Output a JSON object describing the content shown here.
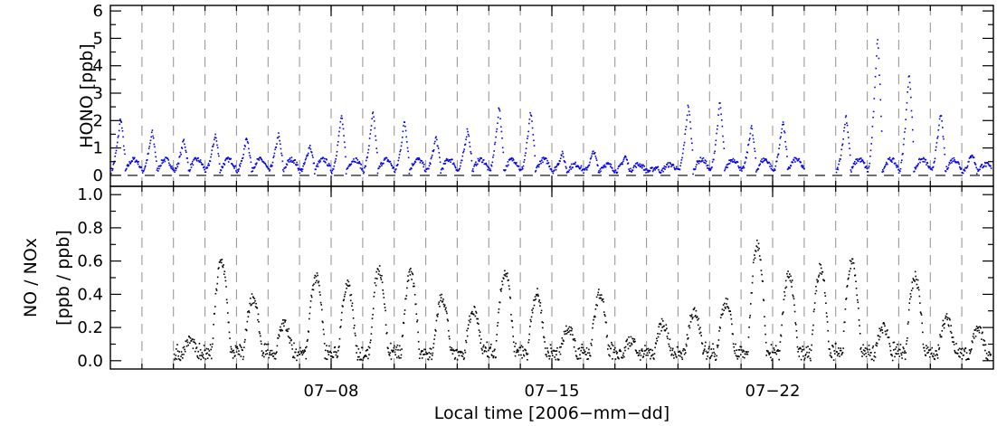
{
  "chart_data": [
    {
      "type": "scatter",
      "title": "",
      "ylabel": "HONO [ppb]",
      "ylim": [
        -0.4,
        6.2
      ],
      "yticks": [
        0,
        1,
        2,
        3,
        4,
        5,
        6
      ],
      "ytick_labels": [
        "0",
        "1",
        "2",
        "3",
        "4",
        "5",
        "6"
      ],
      "xlim": [
        "2006-07-01T00:00",
        "2006-07-29T00:00"
      ],
      "xtick_labels": [
        "",
        "",
        ""
      ],
      "grid": "vertical dashed lines at local midnight",
      "zero_line": true,
      "colors": {
        "points": "#0000ee",
        "zero_line": "#000000"
      },
      "series": [
        {
          "segments": [
            {
              "x_start": "2006-07-01T00:00",
              "days": 8,
              "peaks": [
                2.1,
                1.6,
                1.3,
                1.5,
                1.4,
                1.5,
                1.1,
                2.2
              ]
            },
            {
              "x_start": "2006-07-09T00:00",
              "days": 10,
              "peaks": [
                2.3,
                2.0,
                1.4,
                1.7,
                2.5,
                2.3,
                0.8,
                0.9,
                0.7,
                0.3
              ]
            },
            {
              "x_start": "2006-07-19T00:00",
              "days": 4,
              "peaks": [
                2.6,
                2.7,
                1.8,
                2.0
              ]
            },
            {
              "x_start": "2006-07-24T00:00",
              "days": 5,
              "peaks": [
                2.2,
                5.1,
                3.8,
                2.3,
                0.8
              ]
            }
          ]
        }
      ]
    },
    {
      "type": "scatter",
      "title": "",
      "ylabel": "NO / NOx",
      "ylabel_line2": "[ppb / ppb]",
      "ylim": [
        -0.05,
        1.05
      ],
      "yticks": [
        0.0,
        0.2,
        0.4,
        0.6,
        0.8,
        1.0
      ],
      "ytick_labels": [
        "0.0",
        "0.2",
        "0.4",
        "0.6",
        "0.8",
        "1.0"
      ],
      "xlim": [
        "2006-07-01T00:00",
        "2006-07-29T00:00"
      ],
      "xticks": [
        "2006-07-08",
        "2006-07-15",
        "2006-07-22"
      ],
      "xtick_labels": [
        "07−08",
        "07−15",
        "07−22"
      ],
      "xlabel": "Local time [2006−mm−dd]",
      "grid": "vertical dashed lines at local midnight",
      "colors": {
        "points": "#000000"
      },
      "series": [
        {
          "x_start": "2006-07-03T00:00",
          "daily_peaks": [
            0.12,
            0.6,
            0.38,
            0.22,
            0.5,
            0.45,
            0.55,
            0.52,
            0.38,
            0.3,
            0.53,
            0.4,
            0.2,
            0.4,
            0.12,
            0.22,
            0.3,
            0.35,
            0.7,
            0.52,
            0.56,
            0.6,
            0.2,
            0.5,
            0.25,
            0.18,
            0.22
          ]
        }
      ]
    }
  ]
}
